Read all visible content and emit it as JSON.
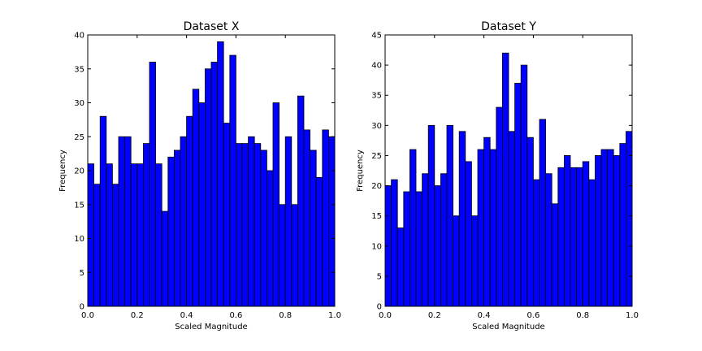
{
  "chart_data": [
    {
      "type": "bar",
      "title": "Dataset X",
      "xlabel": "Scaled Magnitude",
      "ylabel": "Frequency",
      "xlim": [
        0,
        1
      ],
      "ylim": [
        0,
        40
      ],
      "xticks": [
        "0.0",
        "0.2",
        "0.4",
        "0.6",
        "0.8",
        "1.0"
      ],
      "yticks": [
        "0",
        "5",
        "10",
        "15",
        "20",
        "25",
        "30",
        "35",
        "40"
      ],
      "bins": 40,
      "values": [
        21,
        18,
        28,
        21,
        18,
        25,
        25,
        21,
        21,
        24,
        36,
        21,
        14,
        22,
        23,
        25,
        28,
        32,
        30,
        35,
        36,
        39,
        27,
        37,
        24,
        24,
        25,
        24,
        23,
        20,
        30,
        15,
        25,
        15,
        31,
        26,
        23,
        19,
        26,
        25
      ],
      "bar_color": "#0000ff"
    },
    {
      "type": "bar",
      "title": "Dataset Y",
      "xlabel": "Scaled Magnitude",
      "ylabel": "Frequency",
      "xlim": [
        0,
        1
      ],
      "ylim": [
        0,
        45
      ],
      "xticks": [
        "0.0",
        "0.2",
        "0.4",
        "0.6",
        "0.8",
        "1.0"
      ],
      "yticks": [
        "0",
        "5",
        "10",
        "15",
        "20",
        "25",
        "30",
        "35",
        "40",
        "45"
      ],
      "bins": 40,
      "values": [
        20,
        21,
        13,
        19,
        26,
        19,
        22,
        30,
        20,
        22,
        30,
        15,
        29,
        24,
        15,
        26,
        28,
        26,
        33,
        42,
        29,
        37,
        40,
        28,
        21,
        31,
        22,
        17,
        23,
        25,
        23,
        23,
        24,
        21,
        25,
        26,
        26,
        25,
        27,
        29
      ],
      "bar_color": "#0000ff"
    }
  ]
}
